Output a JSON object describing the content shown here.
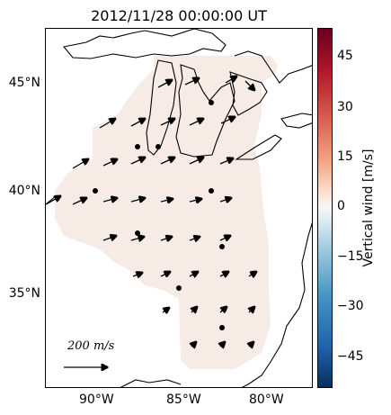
{
  "title": "2012/11/28 00:00:00 UT",
  "map": {
    "lat_labels": [
      "45°N",
      "40°N",
      "35°N"
    ],
    "lon_labels": [
      "90°W",
      "85°W",
      "80°W"
    ],
    "scale_arrow_label": "200 m/s",
    "field_color": "#f7ebe6",
    "region_description_color": "#000000"
  },
  "colorbar": {
    "label": "Vertical wind [m/s]",
    "ticks": [
      "45",
      "30",
      "15",
      "0",
      "−15",
      "−30",
      "−45"
    ],
    "top_color": "#67001f",
    "mid_color": "#f7f7f7",
    "bottom_color": "#053061"
  }
}
